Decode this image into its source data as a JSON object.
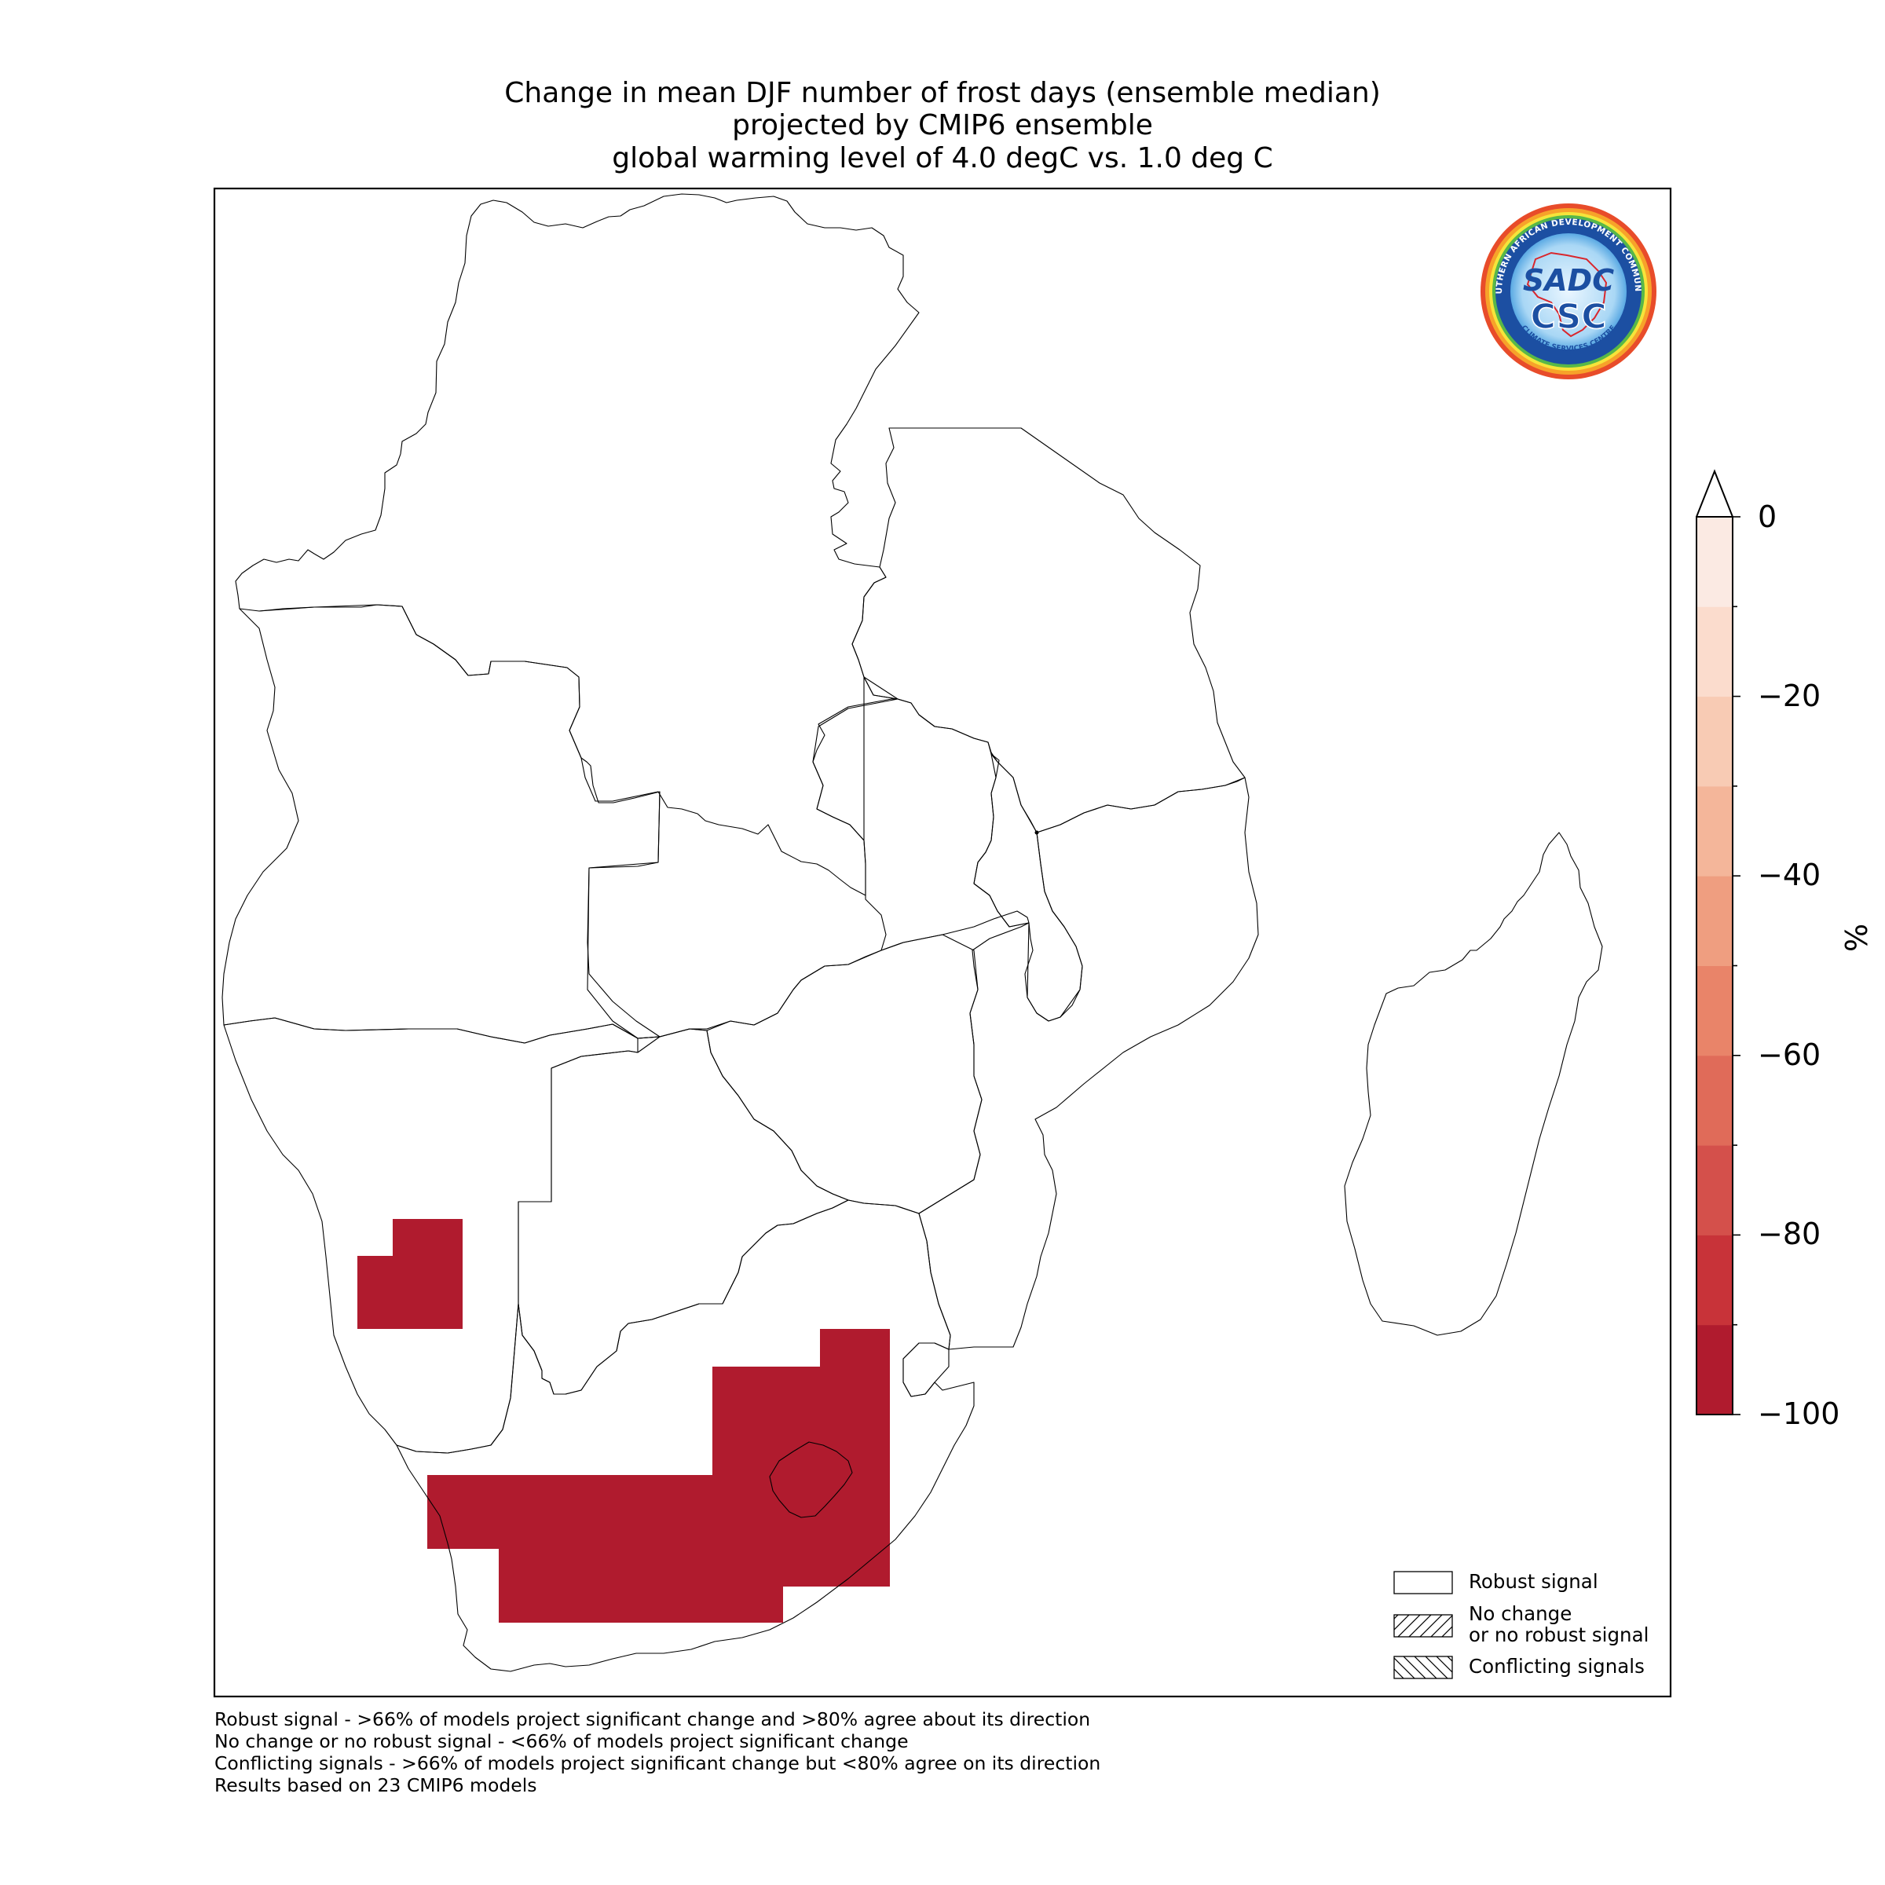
{
  "title": {
    "line1": "Change in mean DJF number of frost days (ensemble median)",
    "line2": "projected by CMIP6 ensemble",
    "line3": "global warming level of 4.0 degC vs. 1.0 deg C"
  },
  "colorbar": {
    "unit": "%",
    "tick_labels": [
      "0",
      "−20",
      "−40",
      "−60",
      "−80",
      "−100"
    ],
    "range": [
      -100,
      0
    ],
    "level_step": 10,
    "extend": "max",
    "colors": [
      "#b01b2e",
      "#c83339",
      "#d4504b",
      "#e06b59",
      "#e98469",
      "#ef9e80",
      "#f4b69a",
      "#f8cbb4",
      "#fbdccd",
      "#fbeae3"
    ]
  },
  "legend": {
    "placement": "lower-right",
    "items": [
      {
        "label": "Robust signal",
        "pattern": "none"
      },
      {
        "label_line1": "No change",
        "label_line2": "or no robust signal",
        "pattern": "diagonal-forward"
      },
      {
        "label": "Conflicting signals",
        "pattern": "diagonal-back"
      }
    ]
  },
  "footnotes": {
    "line1": "Robust signal - >66% of models project significant change and >80% agree about its direction",
    "line2": "No change or no robust signal - <66% of models project significant change",
    "line3": "Conflicting signals - >66% of models project significant change but <80% agree on its direction",
    "line4": "Results based on 23 CMIP6 models"
  },
  "logo": {
    "ring_text": "SOUTHERN AFRICAN DEVELOPMENT COMMUNITY",
    "bottom_text": "CLIMATE SERVICES CENTRE",
    "mark_top": "SADC",
    "mark_bottom": "CSC"
  },
  "map": {
    "region": "Southern Africa",
    "projected_value_color": "#b01b2e",
    "projected_value_percent": -100,
    "regions_with_value": [
      "central Namibia",
      "central and south-eastern South Africa including Lesotho"
    ]
  }
}
